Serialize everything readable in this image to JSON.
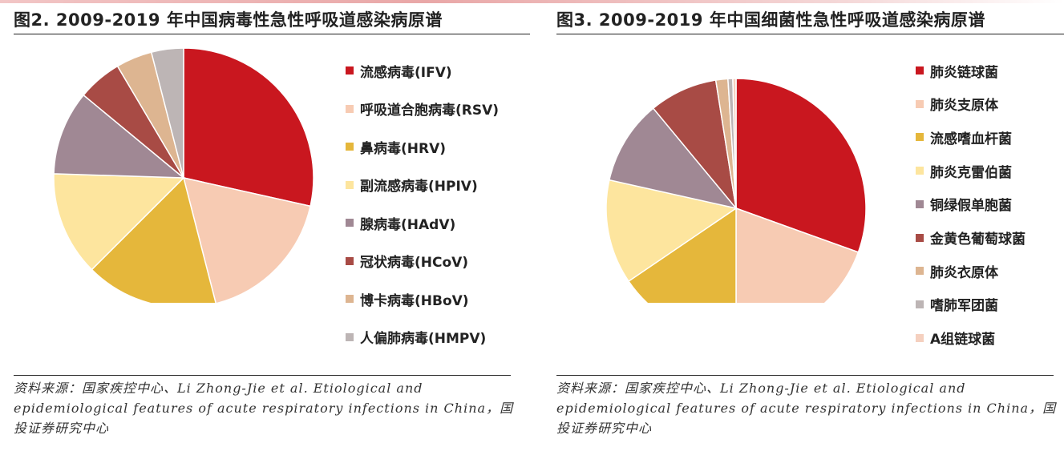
{
  "chart_data": [
    {
      "type": "pie",
      "title": "图2. 2009-2019 年中国病毒性急性呼吸道感染病原谱",
      "legend_position": "right",
      "source": "资料来源：国家疾控中心、Li Zhong-Jie et al. Etiological and epidemiological features of acute respiratory infections in China，国投证券研究中心",
      "slices": [
        {
          "label": "流感病毒(IFV)",
          "value": 28.5,
          "color": "#c9171f"
        },
        {
          "label": "呼吸道合胞病毒(RSV)",
          "value": 17.5,
          "color": "#f7cbb3"
        },
        {
          "label": "鼻病毒(HRV)",
          "value": 16.5,
          "color": "#e5b73b"
        },
        {
          "label": "副流感病毒(HPIV)",
          "value": 13.0,
          "color": "#fde59e"
        },
        {
          "label": "腺病毒(HAdV)",
          "value": 10.5,
          "color": "#a08894"
        },
        {
          "label": "冠状病毒(HCoV)",
          "value": 5.5,
          "color": "#a84b45"
        },
        {
          "label": "博卡病毒(HBoV)",
          "value": 4.5,
          "color": "#ddb591"
        },
        {
          "label": "人偏肺病毒(HMPV)",
          "value": 4.0,
          "color": "#bdb5b5"
        }
      ]
    },
    {
      "type": "pie",
      "title": "图3. 2009-2019 年中国细菌性急性呼吸道感染病原谱",
      "legend_position": "right",
      "source": "资料来源：国家疾控中心、Li Zhong-Jie et al. Etiological and epidemiological features of acute respiratory infections in China，国投证券研究中心",
      "slices": [
        {
          "label": "肺炎链球菌",
          "value": 30.5,
          "color": "#c9171f"
        },
        {
          "label": "肺炎支原体",
          "value": 19.5,
          "color": "#f7cbb3"
        },
        {
          "label": "流感嗜血杆菌",
          "value": 15.5,
          "color": "#e5b73b"
        },
        {
          "label": "肺炎克雷伯菌",
          "value": 13.0,
          "color": "#fde59e"
        },
        {
          "label": "铜绿假单胞菌",
          "value": 10.5,
          "color": "#a08894"
        },
        {
          "label": "金黄色葡萄球菌",
          "value": 8.5,
          "color": "#a84b45"
        },
        {
          "label": "肺炎衣原体",
          "value": 1.5,
          "color": "#ddb591"
        },
        {
          "label": "嗜肺军团菌",
          "value": 0.6,
          "color": "#bdb5b5"
        },
        {
          "label": "A组链球菌",
          "value": 0.4,
          "color": "#f5d0bf"
        }
      ]
    }
  ]
}
